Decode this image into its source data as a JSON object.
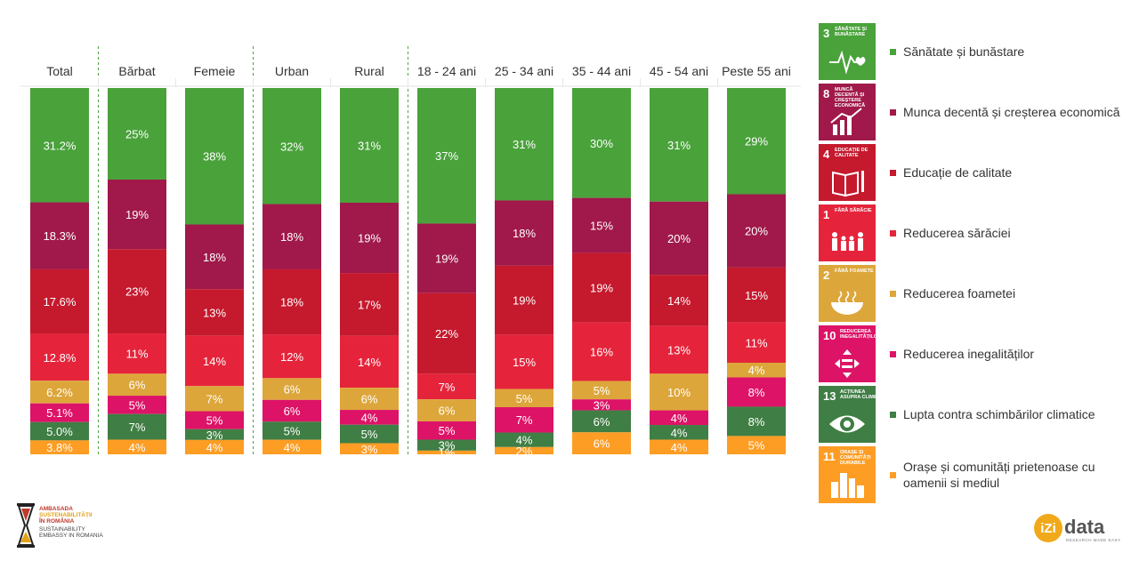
{
  "chart_data": {
    "type": "bar",
    "stacked": "100%",
    "categories": [
      "Total",
      "Bărbat",
      "Femeie",
      "Urban",
      "Rural",
      "18 - 24 ani",
      "25 - 34 ani",
      "35 - 44 ani",
      "45 - 54 ani",
      "Peste 55 ani"
    ],
    "series": [
      {
        "name": "Sănătate și bunăstare",
        "color": "#4aa23b",
        "values": [
          31.2,
          25,
          38,
          32,
          31,
          37,
          31,
          30,
          31,
          29
        ],
        "labels": [
          "31.2%",
          "25%",
          "38%",
          "32%",
          "31%",
          "37%",
          "31%",
          "30%",
          "31%",
          "29%"
        ]
      },
      {
        "name": "Munca decentă și creșterea economică",
        "color": "#a0194a",
        "values": [
          18.3,
          19,
          18,
          18,
          19,
          19,
          18,
          15,
          20,
          20
        ],
        "labels": [
          "18.3%",
          "19%",
          "18%",
          "18%",
          "19%",
          "19%",
          "18%",
          "15%",
          "20%",
          "20%"
        ]
      },
      {
        "name": "Educație de calitate",
        "color": "#c5192d",
        "values": [
          17.6,
          23,
          13,
          18,
          17,
          22,
          19,
          19,
          14,
          15
        ],
        "labels": [
          "17.6%",
          "23%",
          "13%",
          "18%",
          "17%",
          "22%",
          "19%",
          "19%",
          "14%",
          "15%"
        ]
      },
      {
        "name": "Reducerea sărăciei",
        "color": "#e5243b",
        "values": [
          12.8,
          11,
          14,
          12,
          14,
          7,
          15,
          16,
          13,
          11
        ],
        "labels": [
          "12.8%",
          "11%",
          "14%",
          "12%",
          "14%",
          "7%",
          "15%",
          "16%",
          "13%",
          "11%"
        ]
      },
      {
        "name": "Reducerea foametei",
        "color": "#dda63a",
        "values": [
          6.2,
          6,
          7,
          6,
          6,
          6,
          5,
          5,
          10,
          4
        ],
        "labels": [
          "6.2%",
          "6%",
          "7%",
          "6%",
          "6%",
          "6%",
          "5%",
          "5%",
          "10%",
          "4%"
        ]
      },
      {
        "name": "Reducerea inegalităților",
        "color": "#dd1367",
        "values": [
          5.1,
          5,
          5,
          6,
          4,
          5,
          7,
          3,
          4,
          8
        ],
        "labels": [
          "5.1%",
          "5%",
          "5%",
          "6%",
          "4%",
          "5%",
          "7%",
          "3%",
          "4%",
          "8%"
        ]
      },
      {
        "name": "Lupta contra schimbărilor climatice",
        "color": "#3f7e44",
        "values": [
          5.0,
          7,
          3,
          5,
          5,
          3,
          4,
          6,
          4,
          8
        ],
        "labels": [
          "5.0%",
          "7%",
          "3%",
          "5%",
          "5%",
          "3%",
          "4%",
          "6%",
          "4%",
          "8%"
        ]
      },
      {
        "name": "Orașe și comunități prietenoase cu oamenii si mediul",
        "color": "#fd9d24",
        "values": [
          3.8,
          4,
          4,
          4,
          3,
          1,
          2,
          6,
          4,
          5
        ],
        "labels": [
          "3.8%",
          "4%",
          "4%",
          "4%",
          "3%",
          "1%",
          "2%",
          "6%",
          "4%",
          "5%"
        ]
      }
    ],
    "group_separators_after": [
      "Total",
      "Femeie",
      "Rural"
    ],
    "ylim": [
      0,
      100
    ],
    "grid": false,
    "legend": "right"
  },
  "legend_items": [
    {
      "sdg_number": "3",
      "sdg_title": "Sănătate și bunăstare",
      "icon": "heartbeat-icon",
      "color": "#4aa23b",
      "label": "Sănătate și bunăstare"
    },
    {
      "sdg_number": "8",
      "sdg_title": "Muncă decentă și creștere economică",
      "icon": "growth-chart-icon",
      "color": "#a0194a",
      "label": "Munca decentă și creșterea economică"
    },
    {
      "sdg_number": "4",
      "sdg_title": "Educație de calitate",
      "icon": "book-pencil-icon",
      "color": "#c5192d",
      "label": "Educație de calitate"
    },
    {
      "sdg_number": "1",
      "sdg_title": "Fără sărăcie",
      "icon": "family-icon",
      "color": "#e5243b",
      "label": "Reducerea sărăciei"
    },
    {
      "sdg_number": "2",
      "sdg_title": "Fără foamete",
      "icon": "bowl-icon",
      "color": "#dda63a",
      "label": "Reducerea foametei"
    },
    {
      "sdg_number": "10",
      "sdg_title": "Reducerea inegalităților",
      "icon": "equality-arrows-icon",
      "color": "#dd1367",
      "label": "Reducerea inegalităților"
    },
    {
      "sdg_number": "13",
      "sdg_title": "Acțiunea asupra climei",
      "icon": "eye-globe-icon",
      "color": "#3f7e44",
      "label": "Lupta contra schimbărilor climatice"
    },
    {
      "sdg_number": "11",
      "sdg_title": "Orașe și comunități durabile",
      "icon": "city-buildings-icon",
      "color": "#fd9d24",
      "label": "Orașe și comunități prietenoase cu oamenii si mediul"
    }
  ],
  "logos": {
    "left": {
      "line1": "AMBASADA",
      "line2": "SUSTENABILITĂȚII",
      "line3": "ÎN ROMÂNIA",
      "line4": "SUSTAINABILITY EMBASSY IN ROMANIA"
    },
    "right": {
      "mark": "iZi",
      "word": "data",
      "tagline": "RESEARCH MADE EASY"
    }
  }
}
